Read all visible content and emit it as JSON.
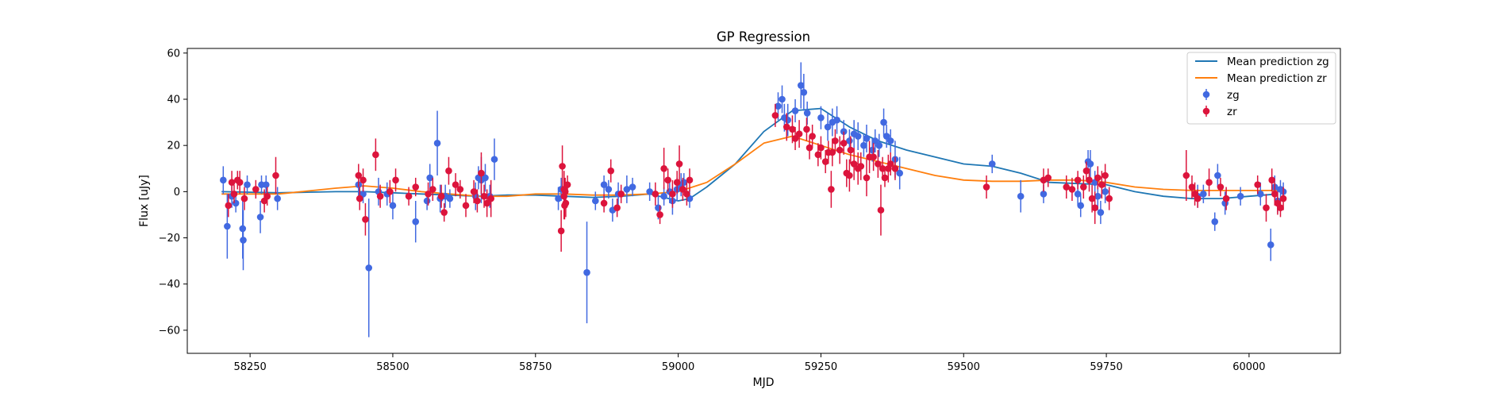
{
  "chart_data": {
    "type": "scatter",
    "title": "GP Regression",
    "xlabel": "MJD",
    "ylabel": "Flux [uJy]",
    "xlim": [
      58140,
      60160
    ],
    "ylim": [
      -70,
      62
    ],
    "xticks": [
      58250,
      58500,
      58750,
      59000,
      59250,
      59500,
      59750,
      60000
    ],
    "yticks": [
      -60,
      -40,
      -20,
      0,
      20,
      40,
      60
    ],
    "grid": false,
    "legend_position": "top-right",
    "lines": [
      {
        "name": "Mean prediction zg",
        "color": "#1f77b4",
        "x": [
          58200,
          58300,
          58400,
          58450,
          58500,
          58550,
          58600,
          58650,
          58700,
          58750,
          58800,
          58850,
          58900,
          58950,
          59000,
          59020,
          59050,
          59100,
          59150,
          59200,
          59250,
          59300,
          59350,
          59400,
          59450,
          59500,
          59550,
          59600,
          59650,
          59700,
          59750,
          59800,
          59850,
          59900,
          59950,
          60000,
          60050
        ],
        "y": [
          0,
          -0.5,
          0,
          0,
          -0.5,
          -1,
          -1.5,
          -2,
          -1.5,
          -1.5,
          -2,
          -2.5,
          -2,
          -1,
          -4,
          -3,
          2,
          12,
          26,
          35,
          36,
          28,
          22,
          18,
          15,
          12,
          11,
          8,
          4,
          3.5,
          3,
          0,
          -2,
          -3,
          -3,
          -2,
          -1
        ]
      },
      {
        "name": "Mean prediction zr",
        "color": "#ff7f0e",
        "x": [
          58200,
          58300,
          58400,
          58450,
          58500,
          58550,
          58600,
          58650,
          58700,
          58750,
          58800,
          58850,
          58900,
          58950,
          59000,
          59050,
          59100,
          59150,
          59200,
          59250,
          59300,
          59350,
          59400,
          59450,
          59500,
          59550,
          59600,
          59650,
          59700,
          59750,
          59800,
          59850,
          59900,
          59950,
          60000,
          60050
        ],
        "y": [
          -1,
          -1,
          1.5,
          2.5,
          1.5,
          0,
          -1,
          -2,
          -2,
          -1,
          -1,
          -1.5,
          -1.5,
          -1,
          0,
          4,
          12,
          21,
          24,
          20,
          16,
          13,
          10,
          7,
          5,
          4.5,
          4.5,
          5,
          5,
          4,
          2,
          1,
          0.5,
          0.5,
          0.5,
          0.5
        ]
      }
    ],
    "series": [
      {
        "name": "zg",
        "color": "#4169e1",
        "points": [
          [
            58203,
            5,
            6
          ],
          [
            58210,
            -15,
            14
          ],
          [
            58218,
            -2,
            5
          ],
          [
            58225,
            -5,
            4
          ],
          [
            58237,
            -16,
            13
          ],
          [
            58238,
            -21,
            13
          ],
          [
            58245,
            3,
            4
          ],
          [
            58268,
            -11,
            7
          ],
          [
            58270,
            3,
            4
          ],
          [
            58278,
            3,
            4
          ],
          [
            58298,
            -3,
            5
          ],
          [
            58440,
            3,
            5
          ],
          [
            58448,
            -1,
            4
          ],
          [
            58458,
            -33,
            30
          ],
          [
            58475,
            0,
            6
          ],
          [
            58490,
            -1,
            5
          ],
          [
            58500,
            -6,
            6
          ],
          [
            58540,
            -13,
            9
          ],
          [
            58560,
            -4,
            4
          ],
          [
            58565,
            6,
            6
          ],
          [
            58578,
            21,
            14
          ],
          [
            58583,
            -3,
            6
          ],
          [
            58592,
            -2,
            5
          ],
          [
            58600,
            -3,
            4
          ],
          [
            58645,
            -2,
            6
          ],
          [
            58650,
            6,
            5
          ],
          [
            58655,
            5,
            10
          ],
          [
            58662,
            6,
            6
          ],
          [
            58670,
            -2,
            5
          ],
          [
            58678,
            14,
            9
          ],
          [
            58790,
            -3,
            5
          ],
          [
            58795,
            1,
            5
          ],
          [
            58840,
            -35,
            22
          ],
          [
            58855,
            -4,
            4
          ],
          [
            58870,
            3,
            4
          ],
          [
            58878,
            1,
            4
          ],
          [
            58885,
            -8,
            5
          ],
          [
            58895,
            -1,
            5
          ],
          [
            58910,
            1,
            6
          ],
          [
            58920,
            2,
            4
          ],
          [
            58950,
            0,
            4
          ],
          [
            58965,
            -7,
            5
          ],
          [
            58975,
            -2,
            4
          ],
          [
            58985,
            0,
            5
          ],
          [
            58990,
            -4,
            6
          ],
          [
            58998,
            1,
            5
          ],
          [
            59005,
            3,
            5
          ],
          [
            59010,
            4,
            4
          ],
          [
            59020,
            -3,
            4
          ],
          [
            59175,
            37,
            6
          ],
          [
            59182,
            40,
            6
          ],
          [
            59186,
            32,
            6
          ],
          [
            59192,
            31,
            7
          ],
          [
            59205,
            35,
            5
          ],
          [
            59215,
            46,
            10
          ],
          [
            59220,
            43,
            8
          ],
          [
            59226,
            34,
            5
          ],
          [
            59250,
            32,
            5
          ],
          [
            59262,
            28,
            6
          ],
          [
            59270,
            30,
            6
          ],
          [
            59278,
            31,
            6
          ],
          [
            59290,
            26,
            5
          ],
          [
            59300,
            22,
            5
          ],
          [
            59308,
            25,
            6
          ],
          [
            59315,
            24,
            6
          ],
          [
            59325,
            20,
            5
          ],
          [
            59330,
            23,
            6
          ],
          [
            59340,
            18,
            5
          ],
          [
            59345,
            22,
            5
          ],
          [
            59352,
            20,
            5
          ],
          [
            59360,
            30,
            6
          ],
          [
            59365,
            24,
            5
          ],
          [
            59372,
            22,
            5
          ],
          [
            59380,
            14,
            8
          ],
          [
            59388,
            8,
            7
          ],
          [
            59550,
            12,
            4
          ],
          [
            59600,
            -2,
            7
          ],
          [
            59640,
            -1,
            4
          ],
          [
            59700,
            -1,
            5
          ],
          [
            59705,
            -6,
            5
          ],
          [
            59718,
            13,
            5
          ],
          [
            59722,
            12,
            6
          ],
          [
            59730,
            4,
            5
          ],
          [
            59735,
            -2,
            6
          ],
          [
            59740,
            -9,
            5
          ],
          [
            59748,
            0,
            5
          ],
          [
            59910,
            -2,
            5
          ],
          [
            59920,
            -1,
            4
          ],
          [
            59940,
            -13,
            4
          ],
          [
            59945,
            7,
            5
          ],
          [
            59958,
            -5,
            5
          ],
          [
            59985,
            -2,
            4
          ],
          [
            60020,
            -1,
            5
          ],
          [
            60038,
            -23,
            7
          ],
          [
            60045,
            2,
            5
          ],
          [
            60050,
            -4,
            5
          ],
          [
            60055,
            1,
            4
          ],
          [
            60060,
            0,
            4
          ]
        ]
      },
      {
        "name": "zr",
        "color": "#dc143c",
        "points": [
          [
            58212,
            -6,
            5
          ],
          [
            58218,
            4,
            5
          ],
          [
            58222,
            -1,
            4
          ],
          [
            58228,
            5,
            4
          ],
          [
            58232,
            4,
            5
          ],
          [
            58240,
            -3,
            5
          ],
          [
            58260,
            1,
            4
          ],
          [
            58275,
            -4,
            5
          ],
          [
            58280,
            -2,
            4
          ],
          [
            58295,
            7,
            8
          ],
          [
            58440,
            7,
            5
          ],
          [
            58442,
            -3,
            5
          ],
          [
            58448,
            5,
            5
          ],
          [
            58452,
            -12,
            7
          ],
          [
            58470,
            16,
            7
          ],
          [
            58478,
            -2,
            5
          ],
          [
            58495,
            0,
            5
          ],
          [
            58505,
            5,
            5
          ],
          [
            58528,
            -2,
            4
          ],
          [
            58540,
            2,
            4
          ],
          [
            58562,
            -1,
            5
          ],
          [
            58570,
            1,
            5
          ],
          [
            58585,
            -2,
            5
          ],
          [
            58590,
            -9,
            4
          ],
          [
            58598,
            9,
            6
          ],
          [
            58610,
            3,
            5
          ],
          [
            58618,
            1,
            4
          ],
          [
            58628,
            -6,
            5
          ],
          [
            58642,
            0,
            5
          ],
          [
            58648,
            -4,
            5
          ],
          [
            58655,
            8,
            9
          ],
          [
            58660,
            -2,
            5
          ],
          [
            58665,
            -5,
            6
          ],
          [
            58672,
            -3,
            8
          ],
          [
            58795,
            -17,
            9
          ],
          [
            58797,
            11,
            9
          ],
          [
            58800,
            1,
            8
          ],
          [
            58800,
            -2,
            10
          ],
          [
            58801,
            -6,
            6
          ],
          [
            58802,
            0,
            6
          ],
          [
            58803,
            -5,
            6
          ],
          [
            58806,
            3,
            4
          ],
          [
            58870,
            -5,
            4
          ],
          [
            58882,
            9,
            5
          ],
          [
            58893,
            -7,
            4
          ],
          [
            58900,
            -1,
            4
          ],
          [
            58960,
            -1,
            5
          ],
          [
            58968,
            -10,
            4
          ],
          [
            58975,
            10,
            9
          ],
          [
            58982,
            5,
            5
          ],
          [
            58990,
            -1,
            6
          ],
          [
            58998,
            4,
            5
          ],
          [
            59002,
            12,
            8
          ],
          [
            59008,
            1,
            5
          ],
          [
            59015,
            -1,
            5
          ],
          [
            59020,
            5,
            5
          ],
          [
            59170,
            33,
            5
          ],
          [
            59190,
            28,
            6
          ],
          [
            59200,
            27,
            6
          ],
          [
            59205,
            23,
            5
          ],
          [
            59212,
            25,
            6
          ],
          [
            59225,
            27,
            5
          ],
          [
            59230,
            19,
            5
          ],
          [
            59235,
            24,
            5
          ],
          [
            59245,
            16,
            5
          ],
          [
            59250,
            19,
            5
          ],
          [
            59258,
            13,
            5
          ],
          [
            59263,
            17,
            5
          ],
          [
            59268,
            1,
            8
          ],
          [
            59270,
            17,
            6
          ],
          [
            59275,
            22,
            5
          ],
          [
            59283,
            18,
            6
          ],
          [
            59290,
            21,
            5
          ],
          [
            59295,
            8,
            6
          ],
          [
            59300,
            7,
            7
          ],
          [
            59302,
            18,
            6
          ],
          [
            59308,
            12,
            7
          ],
          [
            59315,
            10,
            7
          ],
          [
            59320,
            11,
            6
          ],
          [
            59330,
            6,
            8
          ],
          [
            59335,
            15,
            7
          ],
          [
            59342,
            15,
            6
          ],
          [
            59350,
            12,
            6
          ],
          [
            59355,
            -8,
            11
          ],
          [
            59358,
            10,
            5
          ],
          [
            59362,
            6,
            4
          ],
          [
            59368,
            10,
            6
          ],
          [
            59372,
            12,
            5
          ],
          [
            59380,
            10,
            5
          ],
          [
            59540,
            2,
            5
          ],
          [
            59640,
            5,
            5
          ],
          [
            59648,
            6,
            4
          ],
          [
            59680,
            2,
            5
          ],
          [
            59690,
            1,
            5
          ],
          [
            59700,
            5,
            4
          ],
          [
            59710,
            2,
            5
          ],
          [
            59715,
            9,
            4
          ],
          [
            59720,
            5,
            5
          ],
          [
            59725,
            -3,
            6
          ],
          [
            59730,
            -7,
            7
          ],
          [
            59735,
            6,
            5
          ],
          [
            59742,
            3,
            6
          ],
          [
            59748,
            7,
            5
          ],
          [
            59755,
            -3,
            5
          ],
          [
            59890,
            7,
            11
          ],
          [
            59900,
            2,
            5
          ],
          [
            59905,
            -1,
            5
          ],
          [
            59910,
            -3,
            4
          ],
          [
            59930,
            4,
            6
          ],
          [
            59950,
            2,
            4
          ],
          [
            59960,
            -3,
            5
          ],
          [
            60015,
            3,
            4
          ],
          [
            60030,
            -7,
            6
          ],
          [
            60040,
            5,
            5
          ],
          [
            60045,
            -1,
            5
          ],
          [
            60050,
            -5,
            5
          ],
          [
            60055,
            -7,
            4
          ],
          [
            60060,
            -3,
            5
          ]
        ]
      }
    ]
  }
}
